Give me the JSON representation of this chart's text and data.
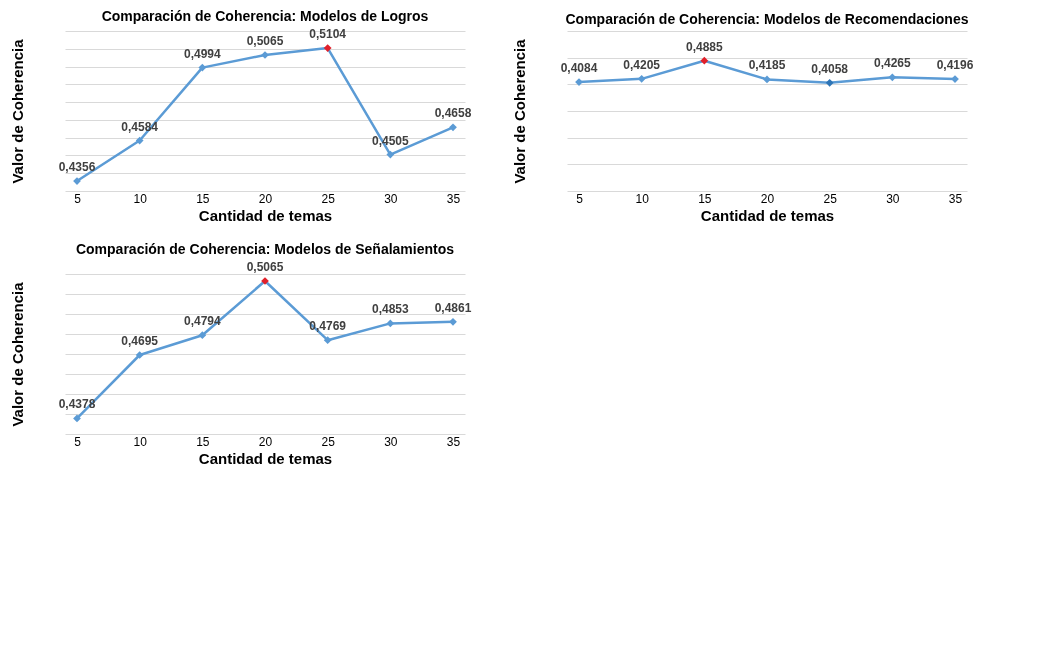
{
  "chart_data": [
    {
      "type": "line",
      "title": "Comparación de Coherencia: Modelos de Logros",
      "xlabel": "Cantidad de temas",
      "ylabel": "Valor de Coherencia",
      "categories": [
        "5",
        "10",
        "15",
        "20",
        "25",
        "30",
        "35"
      ],
      "series": [
        {
          "color": "#5b9bd5",
          "values": [
            0.4356,
            0.4584,
            0.4994,
            0.5065,
            0.5104,
            0.4505,
            0.4658
          ],
          "colors": [
            "#5b9bd5",
            "#5b9bd5",
            "#5b9bd5",
            "#5b9bd5",
            "#e0202a",
            "#5b9bd5",
            "#5b9bd5"
          ],
          "value_labels": [
            "0,4356",
            "0,4584",
            "0,4994",
            "0,5065",
            "0,5104",
            "0,4505",
            "0,4658"
          ]
        }
      ],
      "ylim": [
        0.43,
        0.52
      ],
      "yticks": [
        {
          "value": 0.43,
          "label": null
        },
        {
          "value": 0.44,
          "label": null
        },
        {
          "value": 0.45,
          "label": null
        },
        {
          "value": 0.46,
          "label": null
        },
        {
          "value": 0.47,
          "label": null
        },
        {
          "value": 0.48,
          "label": null
        },
        {
          "value": 0.49,
          "label": null
        },
        {
          "value": 0.5,
          "label": null
        },
        {
          "value": 0.51,
          "label": null
        },
        {
          "value": 0.52,
          "label": null
        }
      ],
      "tick_labels": "x",
      "grid": "y",
      "marker": "diamond",
      "line_style": "solid"
    },
    {
      "type": "line",
      "title": "Comparación de Coherencia: Modelos de Recomendaciones",
      "xlabel": "Cantidad de temas",
      "ylabel": "Valor de Coherencia",
      "categories": [
        "5",
        "10",
        "15",
        "20",
        "25",
        "30",
        "35"
      ],
      "series": [
        {
          "color": "#5b9bd5",
          "values": [
            0.4084,
            0.4205,
            0.4885,
            0.4185,
            0.4058,
            0.4265,
            0.4196
          ],
          "colors": [
            "#5b9bd5",
            "#5b9bd5",
            "#e0202a",
            "#5b9bd5",
            "#2e75b6",
            "#5b9bd5",
            "#5b9bd5"
          ],
          "value_labels": [
            "0,4084",
            "0,4205",
            "0,4885",
            "0,4185",
            "0,4058",
            "0,4265",
            "0,4196"
          ]
        }
      ],
      "ylim": [
        0,
        0.6
      ],
      "yticks": [
        {
          "value": 0,
          "label": null
        },
        {
          "value": 0.1,
          "label": null
        },
        {
          "value": 0.2,
          "label": null
        },
        {
          "value": 0.3,
          "label": null
        },
        {
          "value": 0.4,
          "label": null
        },
        {
          "value": 0.5,
          "label": null
        },
        {
          "value": 0.6,
          "label": null
        }
      ],
      "tick_labels": "x",
      "grid": "y",
      "marker": "diamond",
      "line_style": "solid"
    },
    {
      "type": "line",
      "title": "Comparación de Coherencia: Modelos de Señalamientos",
      "xlabel": "Cantidad de temas",
      "ylabel": "Valor de Coherencia",
      "categories": [
        "5",
        "10",
        "15",
        "20",
        "25",
        "30",
        "35"
      ],
      "series": [
        {
          "color": "#5b9bd5",
          "values": [
            0.4378,
            0.4695,
            0.4794,
            0.5065,
            0.4769,
            0.4853,
            0.4861
          ],
          "colors": [
            "#5b9bd5",
            "#5b9bd5",
            "#5b9bd5",
            "#e0202a",
            "#5b9bd5",
            "#5b9bd5",
            "#5b9bd5"
          ],
          "value_labels": [
            "0,4378",
            "0,4695",
            "0,4794",
            "0,5065",
            "0,4769",
            "0,4853",
            "0,4861"
          ]
        }
      ],
      "ylim": [
        0.43,
        0.51
      ],
      "yticks": [
        {
          "value": 0.43,
          "label": null
        },
        {
          "value": 0.44,
          "label": null
        },
        {
          "value": 0.45,
          "label": null
        },
        {
          "value": 0.46,
          "label": null
        },
        {
          "value": 0.47,
          "label": null
        },
        {
          "value": 0.48,
          "label": null
        },
        {
          "value": 0.49,
          "label": null
        },
        {
          "value": 0.5,
          "label": null
        },
        {
          "value": 0.51,
          "label": null
        }
      ],
      "tick_labels": "x",
      "grid": "y",
      "marker": "diamond",
      "line_style": "solid"
    }
  ]
}
